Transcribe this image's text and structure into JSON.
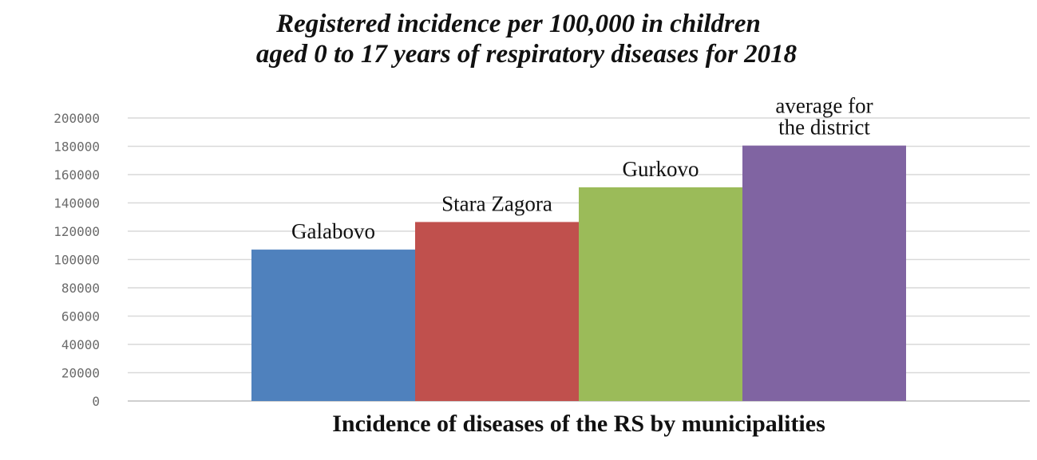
{
  "chart_data": {
    "type": "bar",
    "title_lines": [
      "Registered incidence per 100,000 in children",
      "aged 0 to 17 years of respiratory diseases for 2018"
    ],
    "xlabel": "Incidence of diseases of the RS by municipalities",
    "ylabel": "",
    "ylim": [
      0,
      200000
    ],
    "yticks": [
      "0",
      "20000",
      "40000",
      "60000",
      "80000",
      "100000",
      "120000",
      "140000",
      "160000",
      "180000",
      "200000"
    ],
    "grid": true,
    "categories": [
      [
        "Galabovo"
      ],
      [
        "Stara Zagora"
      ],
      [
        "Gurkovo"
      ],
      [
        "average for",
        "the district"
      ]
    ],
    "values": [
      107000,
      126500,
      151000,
      180500
    ],
    "colors": [
      "#4f81bd",
      "#c0504d",
      "#9bbb59",
      "#8064a2"
    ]
  }
}
